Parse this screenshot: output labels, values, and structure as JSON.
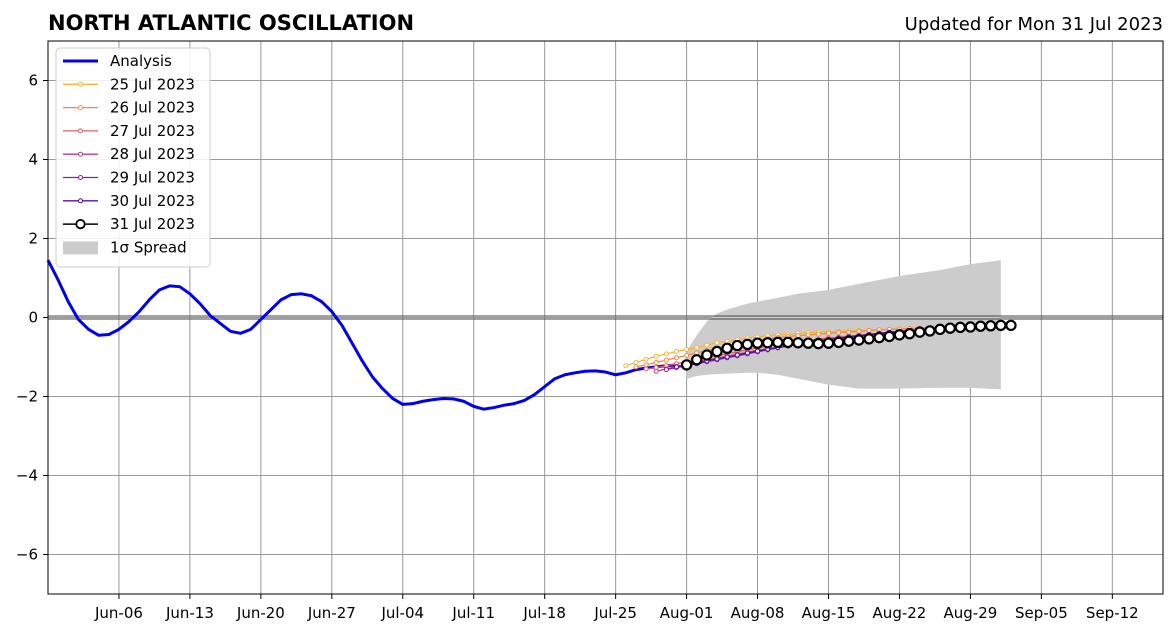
{
  "chart_data": {
    "type": "line",
    "title": "NORTH ATLANTIC OSCILLATION",
    "subtitle": "Updated for Mon 31 Jul 2023",
    "xlabel": "",
    "ylabel": "",
    "xlim": [
      "2023-05-30",
      "2023-09-17"
    ],
    "ylim": [
      -7,
      7
    ],
    "x_ticks": [
      "Jun-06",
      "Jun-13",
      "Jun-20",
      "Jun-27",
      "Jul-04",
      "Jul-11",
      "Jul-18",
      "Jul-25",
      "Aug-01",
      "Aug-08",
      "Aug-15",
      "Aug-22",
      "Aug-29",
      "Sep-05",
      "Sep-12"
    ],
    "x_tick_dates": [
      "2023-06-06",
      "2023-06-13",
      "2023-06-20",
      "2023-06-27",
      "2023-07-04",
      "2023-07-11",
      "2023-07-18",
      "2023-07-25",
      "2023-08-01",
      "2023-08-08",
      "2023-08-15",
      "2023-08-22",
      "2023-08-29",
      "2023-09-05",
      "2023-09-12"
    ],
    "y_ticks": [
      -6,
      -4,
      -2,
      0,
      2,
      4,
      6
    ],
    "y_tick_labels": [
      "−6",
      "−4",
      "−2",
      "0",
      "2",
      "4",
      "6"
    ],
    "grid": true,
    "legend_position": "upper-left",
    "colors": {
      "analysis": "#0000ee",
      "spread": "#cccccc",
      "jul25": "#f9b53a",
      "jul26": "#f08a48",
      "jul27": "#d9606a",
      "jul28": "#bb3c8a",
      "jul29": "#8f1fa0",
      "jul30": "#5a1199",
      "jul31": "#000000"
    },
    "legend": [
      {
        "label": "Analysis",
        "key": "analysis",
        "style": "thick-line"
      },
      {
        "label": "25 Jul 2023",
        "key": "jul25",
        "style": "small-marker-line"
      },
      {
        "label": "26 Jul 2023",
        "key": "jul26",
        "style": "small-marker-line"
      },
      {
        "label": "27 Jul 2023",
        "key": "jul27",
        "style": "small-marker-line"
      },
      {
        "label": "28 Jul 2023",
        "key": "jul28",
        "style": "small-marker-line"
      },
      {
        "label": "29 Jul 2023",
        "key": "jul29",
        "style": "small-marker-line"
      },
      {
        "label": "30 Jul 2023",
        "key": "jul30",
        "style": "small-marker-line"
      },
      {
        "label": "31 Jul 2023",
        "key": "jul31",
        "style": "open-circle-line"
      },
      {
        "label": "1σ Spread",
        "key": "spread",
        "style": "patch"
      }
    ],
    "analysis": {
      "name": "Analysis",
      "x": [
        "2023-05-30",
        "2023-05-31",
        "2023-06-01",
        "2023-06-02",
        "2023-06-03",
        "2023-06-04",
        "2023-06-05",
        "2023-06-06",
        "2023-06-07",
        "2023-06-08",
        "2023-06-09",
        "2023-06-10",
        "2023-06-11",
        "2023-06-12",
        "2023-06-13",
        "2023-06-14",
        "2023-06-15",
        "2023-06-16",
        "2023-06-17",
        "2023-06-18",
        "2023-06-19",
        "2023-06-20",
        "2023-06-21",
        "2023-06-22",
        "2023-06-23",
        "2023-06-24",
        "2023-06-25",
        "2023-06-26",
        "2023-06-27",
        "2023-06-28",
        "2023-06-29",
        "2023-06-30",
        "2023-07-01",
        "2023-07-02",
        "2023-07-03",
        "2023-07-04",
        "2023-07-05",
        "2023-07-06",
        "2023-07-07",
        "2023-07-08",
        "2023-07-09",
        "2023-07-10",
        "2023-07-11",
        "2023-07-12",
        "2023-07-13",
        "2023-07-14",
        "2023-07-15",
        "2023-07-16",
        "2023-07-17",
        "2023-07-18",
        "2023-07-19",
        "2023-07-20",
        "2023-07-21",
        "2023-07-22",
        "2023-07-23",
        "2023-07-24",
        "2023-07-25",
        "2023-07-26",
        "2023-07-27",
        "2023-07-28",
        "2023-07-29",
        "2023-07-30",
        "2023-07-31"
      ],
      "y": [
        1.45,
        0.95,
        0.4,
        -0.05,
        -0.3,
        -0.45,
        -0.43,
        -0.3,
        -0.1,
        0.15,
        0.45,
        0.7,
        0.8,
        0.78,
        0.6,
        0.35,
        0.05,
        -0.15,
        -0.35,
        -0.4,
        -0.3,
        -0.05,
        0.2,
        0.45,
        0.58,
        0.6,
        0.55,
        0.4,
        0.15,
        -0.2,
        -0.65,
        -1.1,
        -1.5,
        -1.8,
        -2.05,
        -2.2,
        -2.18,
        -2.12,
        -2.08,
        -2.05,
        -2.06,
        -2.12,
        -2.25,
        -2.32,
        -2.28,
        -2.22,
        -2.18,
        -2.1,
        -1.95,
        -1.75,
        -1.55,
        -1.45,
        -1.4,
        -1.36,
        -1.35,
        -1.38,
        -1.45,
        -1.4,
        -1.32,
        -1.28,
        -1.25,
        -1.22,
        -1.2
      ]
    },
    "spread": {
      "name": "1σ Spread",
      "x": [
        "2023-08-01",
        "2023-08-02",
        "2023-08-03",
        "2023-08-04",
        "2023-08-05",
        "2023-08-06",
        "2023-08-07",
        "2023-08-08",
        "2023-08-10",
        "2023-08-12",
        "2023-08-15",
        "2023-08-18",
        "2023-08-22",
        "2023-08-26",
        "2023-08-29",
        "2023-09-01"
      ],
      "upper": [
        -0.85,
        -0.45,
        -0.1,
        0.1,
        0.2,
        0.28,
        0.35,
        0.4,
        0.5,
        0.6,
        0.7,
        0.85,
        1.05,
        1.2,
        1.35,
        1.45
      ],
      "lower": [
        -1.55,
        -1.48,
        -1.45,
        -1.43,
        -1.42,
        -1.41,
        -1.4,
        -1.4,
        -1.45,
        -1.55,
        -1.7,
        -1.8,
        -1.8,
        -1.78,
        -1.78,
        -1.82
      ]
    },
    "forecasts": [
      {
        "name": "25 Jul 2023",
        "key": "jul25",
        "start": "2023-07-26",
        "y": [
          -1.22,
          -1.14,
          -1.06,
          -0.98,
          -0.92,
          -0.86,
          -0.81,
          -0.76,
          -0.7,
          -0.64,
          -0.6,
          -0.56,
          -0.52,
          -0.49,
          -0.46,
          -0.44,
          -0.42,
          -0.4,
          -0.38,
          -0.37,
          -0.36,
          -0.35,
          -0.34,
          -0.33,
          -0.32,
          -0.31,
          -0.3,
          -0.29,
          -0.28,
          -0.27,
          -0.26,
          -0.25,
          -0.24
        ]
      },
      {
        "name": "26 Jul 2023",
        "key": "jul26",
        "start": "2023-07-27",
        "y": [
          -1.25,
          -1.2,
          -1.14,
          -1.08,
          -1.02,
          -0.96,
          -0.9,
          -0.84,
          -0.78,
          -0.72,
          -0.67,
          -0.62,
          -0.58,
          -0.54,
          -0.51,
          -0.48,
          -0.46,
          -0.44,
          -0.42,
          -0.4,
          -0.38,
          -0.37,
          -0.35,
          -0.33,
          -0.31,
          -0.3,
          -0.29,
          -0.28,
          -0.27,
          -0.26,
          -0.25,
          -0.24
        ]
      },
      {
        "name": "27 Jul 2023",
        "key": "jul27",
        "start": "2023-07-28",
        "y": [
          -1.3,
          -1.27,
          -1.22,
          -1.17,
          -1.12,
          -1.07,
          -1.02,
          -0.97,
          -0.92,
          -0.87,
          -0.82,
          -0.77,
          -0.72,
          -0.68,
          -0.64,
          -0.61,
          -0.58,
          -0.55,
          -0.52,
          -0.5,
          -0.47,
          -0.45,
          -0.42,
          -0.4,
          -0.38,
          -0.35,
          -0.33,
          -0.31,
          -0.29,
          -0.27,
          -0.25
        ]
      },
      {
        "name": "28 Jul 2023",
        "key": "jul28",
        "start": "2023-07-29",
        "y": [
          -1.36,
          -1.3,
          -1.24,
          -1.18,
          -1.13,
          -1.08,
          -1.03,
          -0.98,
          -0.93,
          -0.88,
          -0.83,
          -0.79,
          -0.75,
          -0.7,
          -0.66,
          -0.62,
          -0.58,
          -0.55,
          -0.52,
          -0.49,
          -0.46,
          -0.43,
          -0.4,
          -0.38,
          -0.35,
          -0.33,
          -0.31,
          -0.29,
          -0.27,
          -0.25
        ]
      },
      {
        "name": "29 Jul 2023",
        "key": "jul29",
        "start": "2023-07-30",
        "y": [
          -1.32,
          -1.27,
          -1.22,
          -1.17,
          -1.12,
          -1.07,
          -1.02,
          -0.97,
          -0.92,
          -0.87,
          -0.82,
          -0.77,
          -0.72,
          -0.68,
          -0.64,
          -0.6,
          -0.56,
          -0.52,
          -0.49,
          -0.46,
          -0.43,
          -0.4,
          -0.37,
          -0.35,
          -0.33,
          -0.31,
          -0.29,
          -0.27,
          -0.25
        ]
      },
      {
        "name": "30 Jul 2023",
        "key": "jul30",
        "start": "2023-07-31",
        "y": [
          -1.25,
          -1.2,
          -1.15,
          -1.1,
          -1.05,
          -1.0,
          -0.95,
          -0.9,
          -0.85,
          -0.8,
          -0.76,
          -0.72,
          -0.68,
          -0.64,
          -0.6,
          -0.56,
          -0.53,
          -0.5,
          -0.47,
          -0.44,
          -0.41,
          -0.38,
          -0.36,
          -0.34,
          -0.32,
          -0.3,
          -0.28,
          -0.26
        ]
      },
      {
        "name": "31 Jul 2023",
        "key": "jul31",
        "start": "2023-08-01",
        "y": [
          -1.2,
          -1.07,
          -0.95,
          -0.86,
          -0.78,
          -0.71,
          -0.68,
          -0.65,
          -0.64,
          -0.63,
          -0.63,
          -0.64,
          -0.65,
          -0.66,
          -0.65,
          -0.63,
          -0.6,
          -0.57,
          -0.54,
          -0.51,
          -0.48,
          -0.44,
          -0.41,
          -0.37,
          -0.34,
          -0.3,
          -0.27,
          -0.25,
          -0.24,
          -0.22,
          -0.21,
          -0.2,
          -0.2
        ]
      }
    ]
  }
}
